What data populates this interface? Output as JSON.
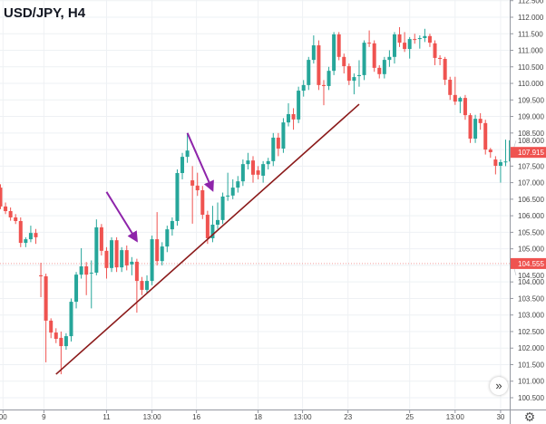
{
  "title": "USD/JPY, H4",
  "icons": {
    "scroll": "double-chevron-right-icon",
    "settings": "gear-icon"
  },
  "colors": {
    "up": "#26a69a",
    "down": "#ef5350",
    "trendline": "#8b1a1a",
    "arrows": "#8e24aa",
    "grid": "#eef1f4"
  },
  "chart_data": {
    "type": "candlestick",
    "title": "USD/JPY, H4",
    "ylim": [
      100.25,
      112.52
    ],
    "grid": true,
    "yticks": [
      "112.500",
      "112.000",
      "111.500",
      "111.000",
      "110.500",
      "110.000",
      "109.500",
      "109.000",
      "108.500",
      "108.000",
      "107.500",
      "107.000",
      "106.500",
      "106.000",
      "105.500",
      "105.000",
      "104.500",
      "104.000",
      "103.500",
      "103.000",
      "102.500",
      "102.000",
      "101.500",
      "101.000",
      "100.500"
    ],
    "xticks": [
      {
        "label": "00",
        "candle": 0.5
      },
      {
        "label": "9",
        "candle": 8.6
      },
      {
        "label": "11",
        "candle": 21
      },
      {
        "label": "13:00",
        "candle": 30
      },
      {
        "label": "16",
        "candle": 38.8
      },
      {
        "label": "18",
        "candle": 51
      },
      {
        "label": "13:00",
        "candle": 59.8
      },
      {
        "label": "23",
        "candle": 68.8
      },
      {
        "label": "25",
        "candle": 81
      },
      {
        "label": "13:00",
        "candle": 90
      },
      {
        "label": "30",
        "candle": 99
      }
    ],
    "candles_ohlc": [
      [
        106.85,
        106.95,
        106.2,
        106.28
      ],
      [
        106.28,
        106.4,
        106.05,
        106.14
      ],
      [
        106.14,
        106.25,
        105.85,
        105.95
      ],
      [
        105.95,
        106.05,
        105.75,
        105.84
      ],
      [
        105.84,
        105.95,
        105.05,
        105.18
      ],
      [
        105.18,
        105.35,
        105.05,
        105.29
      ],
      [
        105.29,
        105.7,
        105.2,
        105.48
      ],
      [
        105.48,
        105.6,
        105.15,
        105.35
      ],
      [
        104.2,
        104.58,
        103.54,
        104.17
      ],
      [
        104.17,
        104.25,
        101.57,
        102.83
      ],
      [
        102.83,
        102.9,
        102.3,
        102.47
      ],
      [
        102.47,
        102.6,
        102.15,
        102.28
      ],
      [
        102.31,
        102.5,
        101.21,
        102.06
      ],
      [
        102.06,
        102.45,
        101.95,
        102.36
      ],
      [
        102.36,
        103.5,
        102.2,
        103.4
      ],
      [
        103.4,
        104.3,
        103.2,
        104.22
      ],
      [
        104.22,
        105.02,
        104.1,
        104.47
      ],
      [
        104.47,
        104.6,
        103.6,
        104.22
      ],
      [
        104.26,
        104.65,
        103.2,
        104.28
      ],
      [
        104.28,
        105.89,
        104.2,
        105.65
      ],
      [
        105.65,
        105.75,
        104.8,
        104.94
      ],
      [
        104.94,
        105.05,
        104.1,
        104.42
      ],
      [
        104.42,
        105.35,
        104.3,
        105.26
      ],
      [
        105.26,
        105.35,
        104.3,
        104.44
      ],
      [
        104.44,
        105.05,
        104.3,
        104.96
      ],
      [
        104.96,
        105.1,
        104.35,
        104.5
      ],
      [
        104.53,
        104.75,
        104.2,
        104.61
      ],
      [
        104.61,
        104.7,
        103.07,
        104.03
      ],
      [
        104.03,
        104.15,
        103.6,
        103.76
      ],
      [
        103.76,
        104.2,
        103.65,
        104.03
      ],
      [
        104.03,
        105.4,
        103.9,
        105.29
      ],
      [
        105.29,
        106.11,
        104.5,
        104.63
      ],
      [
        104.63,
        105.2,
        104.5,
        105.07
      ],
      [
        105.07,
        105.7,
        104.9,
        105.59
      ],
      [
        105.59,
        105.95,
        105.4,
        105.84
      ],
      [
        105.84,
        107.4,
        105.7,
        107.29
      ],
      [
        107.29,
        107.9,
        107.1,
        107.78
      ],
      [
        107.78,
        108.5,
        107.6,
        107.97
      ],
      [
        107.07,
        107.5,
        105.76,
        106.91
      ],
      [
        106.91,
        107.3,
        106.6,
        106.77
      ],
      [
        106.77,
        106.9,
        105.9,
        106.03
      ],
      [
        106.03,
        106.15,
        105.15,
        105.32
      ],
      [
        105.32,
        106.3,
        105.2,
        105.73
      ],
      [
        105.73,
        106.4,
        105.6,
        105.87
      ],
      [
        105.87,
        106.7,
        105.75,
        106.58
      ],
      [
        106.58,
        107.3,
        106.45,
        106.61
      ],
      [
        106.61,
        107.1,
        106.5,
        106.85
      ],
      [
        106.85,
        107.2,
        106.7,
        107.04
      ],
      [
        107.04,
        107.7,
        106.9,
        107.56
      ],
      [
        107.56,
        107.9,
        107.4,
        107.67
      ],
      [
        107.67,
        107.8,
        107.0,
        107.24
      ],
      [
        107.37,
        107.5,
        107.1,
        107.24
      ],
      [
        107.21,
        107.65,
        107.0,
        107.56
      ],
      [
        107.56,
        107.75,
        107.4,
        107.65
      ],
      [
        107.65,
        108.5,
        107.5,
        108.36
      ],
      [
        108.36,
        108.5,
        107.8,
        108.03
      ],
      [
        108.03,
        108.95,
        107.9,
        108.82
      ],
      [
        108.82,
        109.4,
        108.7,
        109.07
      ],
      [
        109.07,
        109.25,
        108.6,
        108.91
      ],
      [
        108.91,
        109.9,
        108.8,
        109.78
      ],
      [
        109.78,
        110.1,
        109.6,
        109.95
      ],
      [
        109.95,
        110.8,
        109.8,
        110.71
      ],
      [
        110.71,
        111.45,
        110.6,
        111.15
      ],
      [
        111.15,
        111.3,
        109.8,
        109.95
      ],
      [
        109.95,
        110.1,
        109.34,
        109.92
      ],
      [
        109.92,
        110.5,
        109.8,
        110.38
      ],
      [
        110.38,
        111.55,
        110.25,
        111.48
      ],
      [
        111.48,
        111.55,
        110.7,
        110.8
      ],
      [
        110.8,
        110.9,
        110.3,
        110.52
      ],
      [
        110.52,
        110.6,
        109.95,
        110.08
      ],
      [
        110.08,
        110.3,
        109.67,
        110.19
      ],
      [
        110.22,
        110.7,
        109.9,
        110.25
      ],
      [
        110.25,
        111.3,
        110.1,
        111.23
      ],
      [
        111.23,
        111.6,
        111.1,
        111.21
      ],
      [
        111.21,
        111.3,
        110.35,
        110.47
      ],
      [
        110.47,
        110.55,
        110.15,
        110.28
      ],
      [
        110.28,
        110.8,
        110.15,
        110.71
      ],
      [
        110.71,
        111.0,
        110.5,
        110.8
      ],
      [
        110.8,
        111.55,
        110.6,
        111.48
      ],
      [
        111.48,
        111.7,
        111.1,
        111.23
      ],
      [
        111.23,
        111.55,
        110.95,
        111.04
      ],
      [
        111.04,
        111.4,
        110.75,
        111.34
      ],
      [
        111.34,
        111.5,
        111.2,
        111.32
      ],
      [
        111.34,
        111.45,
        111.05,
        111.37
      ],
      [
        111.37,
        111.65,
        111.25,
        111.43
      ],
      [
        111.43,
        111.5,
        111.1,
        111.23
      ],
      [
        111.21,
        111.3,
        110.55,
        110.77
      ],
      [
        110.77,
        110.85,
        110.55,
        110.74
      ],
      [
        110.74,
        110.8,
        109.95,
        110.11
      ],
      [
        110.11,
        110.2,
        109.5,
        109.65
      ],
      [
        109.65,
        110.2,
        109.35,
        109.45
      ],
      [
        109.45,
        109.6,
        109.1,
        109.56
      ],
      [
        109.56,
        109.65,
        108.9,
        109.04
      ],
      [
        109.04,
        109.1,
        108.2,
        108.33
      ],
      [
        108.33,
        109.05,
        108.2,
        108.93
      ],
      [
        108.93,
        109.1,
        108.6,
        108.8
      ],
      [
        108.8,
        108.9,
        107.85,
        108.0
      ],
      [
        108.0,
        108.05,
        107.75,
        107.92
      ],
      [
        107.7,
        107.8,
        107.25,
        107.51
      ],
      [
        107.51,
        107.7,
        107.0,
        107.62
      ],
      [
        107.62,
        108.3,
        107.5,
        107.64
      ],
      [
        107.64,
        108.4,
        107.55,
        108.28
      ]
    ],
    "trendline": {
      "from": {
        "candle": 11,
        "price": 101.21
      },
      "to": {
        "candle": 71,
        "price": 109.37
      }
    },
    "arrows": [
      {
        "from": {
          "candle": 21,
          "price": 106.72
        },
        "to": {
          "candle": 27,
          "price": 105.24
        }
      },
      {
        "from": {
          "candle": 37,
          "price": 108.5
        },
        "to": {
          "candle": 42,
          "price": 106.77
        }
      }
    ],
    "price_lines": [
      {
        "value": 104.555,
        "label": "104.555",
        "style": "dotted"
      },
      {
        "value": 107.915,
        "label": "107.915",
        "style": "none"
      }
    ]
  }
}
